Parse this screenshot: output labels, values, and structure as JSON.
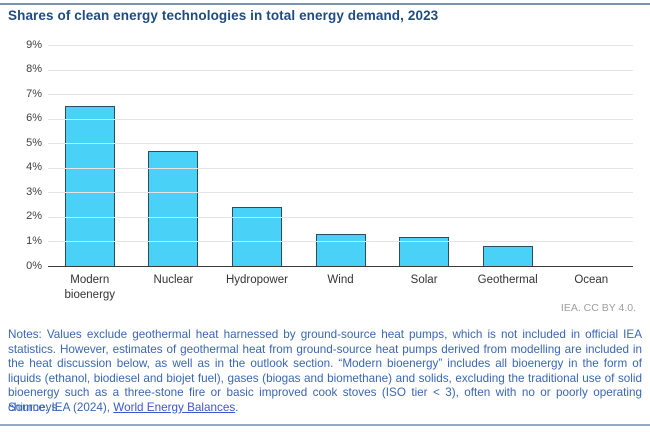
{
  "title": "Shares of clean energy technologies in total energy demand, 2023",
  "attribution": "IEA. CC BY 4.0.",
  "notes": "Notes: Values exclude geothermal heat harnessed by ground-source heat pumps, which is not included in official IEA statistics. However, estimates of geothermal heat from ground-source heat pumps derived from modelling are included in the heat discussion below, as well as in the outlook section. “Modern bioenergy” includes all bioenergy in the form of liquids (ethanol, biodiesel and biojet fuel), gases (biogas and biomethane) and solids, excluding the traditional use of solid bioenergy such as a three-stone fire or basic improved cook stoves (ISO tier < 3), often with no or poorly operating chimneys.",
  "source": {
    "prefix": "Source: IEA (2024), ",
    "link_text": "World Energy Balances",
    "suffix": "."
  },
  "chart_data": {
    "type": "bar",
    "title": "Shares of clean energy technologies in total energy demand, 2023",
    "categories": [
      "Modern bioenergy",
      "Nuclear",
      "Hydropower",
      "Wind",
      "Solar",
      "Geothermal",
      "Ocean"
    ],
    "values": [
      6.5,
      4.7,
      2.4,
      1.3,
      1.2,
      0.8,
      0.0
    ],
    "unit": "%",
    "xlabel": "",
    "ylabel": "",
    "ylim": [
      0,
      9
    ],
    "ytick_labels": [
      "0%",
      "1%",
      "2%",
      "3%",
      "4%",
      "5%",
      "6%",
      "7%",
      "8%",
      "9%"
    ],
    "grid": true,
    "legend": "none"
  },
  "colors": {
    "title": "#1f4b82",
    "notes": "#3a66b4",
    "link": "#3d56d2",
    "rule_top": "#7c95ac",
    "rule_bottom": "#96abbe",
    "attribution": "#9e9e9e",
    "axis_label": "#404040",
    "category_label": "#333333",
    "axis_line": "#3a3a3a",
    "gridline": "#e4e4e4",
    "bar_fill": "#4ad1f7",
    "bar_border": "#2e4d59"
  }
}
